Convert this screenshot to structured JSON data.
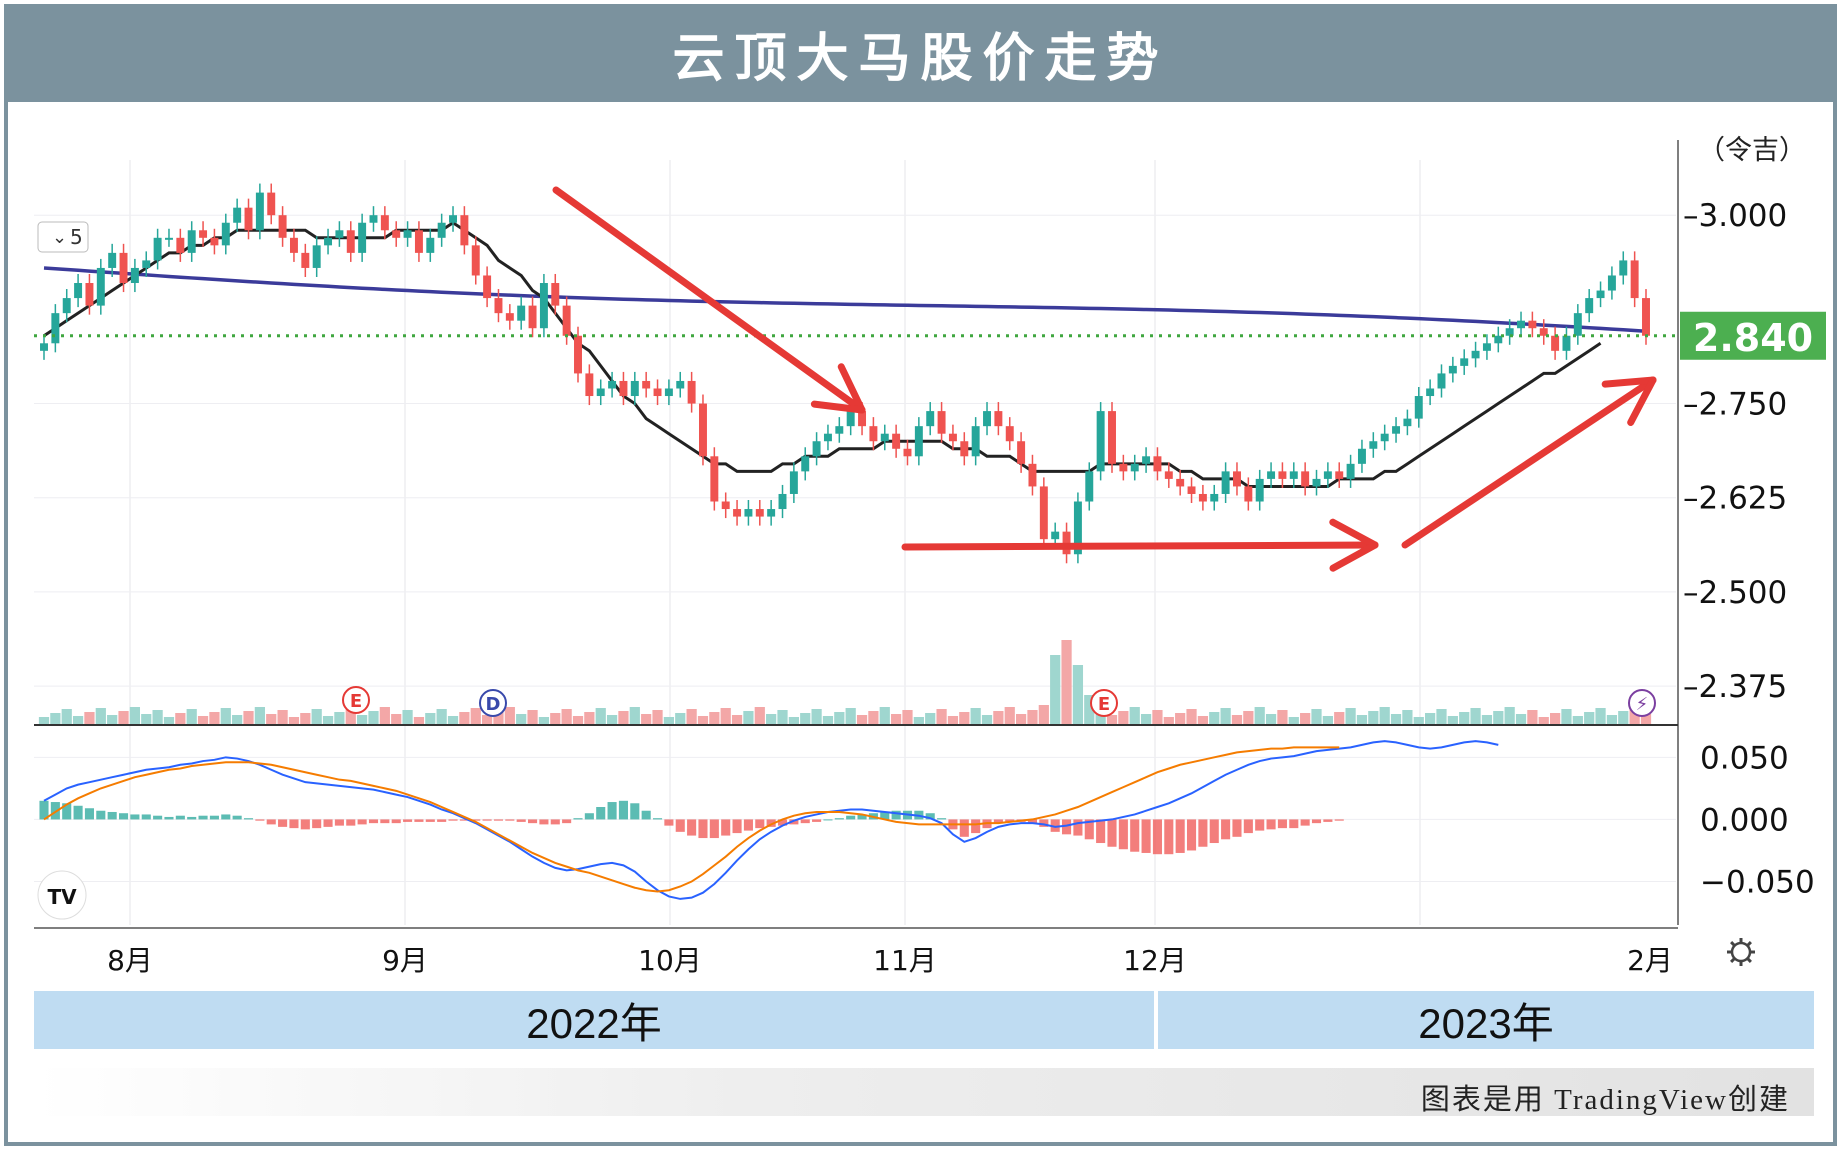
{
  "header": {
    "title": "云顶大马股价走势"
  },
  "footer": {
    "credit": "图表是用 TradingView创建"
  },
  "colors": {
    "up": "#26a69a",
    "down": "#ef5350",
    "ma_long": "#3b3b9a",
    "ma_short": "#222222",
    "price_line": "#3fa63f",
    "price_badge": "#4caf50",
    "arrow": "#e53935",
    "macd_line": "#2962ff",
    "signal_line": "#f57c00",
    "header_bg": "#7b929e",
    "year_band": "#bfdcf2"
  },
  "chart_data": [
    {
      "type": "candlestick",
      "unit_label": "（令吉）",
      "y_ticks": [
        "3.000",
        "2.750",
        "2.625",
        "2.500",
        "2.375"
      ],
      "ylim": [
        2.33,
        3.06
      ],
      "x_months": [
        "8月",
        "9月",
        "10月",
        "11月",
        "12月",
        "2月"
      ],
      "years": [
        "2022年",
        "2023年"
      ],
      "last_price": "2.840",
      "interval_label": "5",
      "closes": [
        2.83,
        2.87,
        2.89,
        2.91,
        2.88,
        2.93,
        2.95,
        2.91,
        2.93,
        2.94,
        2.97,
        2.97,
        2.95,
        2.98,
        2.97,
        2.96,
        2.99,
        3.01,
        2.98,
        3.03,
        3.0,
        2.97,
        2.95,
        2.93,
        2.96,
        2.97,
        2.98,
        2.95,
        2.99,
        3.0,
        2.98,
        2.97,
        2.98,
        2.95,
        2.97,
        2.99,
        3.0,
        2.96,
        2.92,
        2.89,
        2.87,
        2.86,
        2.88,
        2.85,
        2.91,
        2.88,
        2.84,
        2.79,
        2.76,
        2.77,
        2.78,
        2.76,
        2.78,
        2.77,
        2.76,
        2.77,
        2.78,
        2.75,
        2.68,
        2.62,
        2.61,
        2.6,
        2.61,
        2.6,
        2.61,
        2.63,
        2.66,
        2.68,
        2.7,
        2.71,
        2.72,
        2.74,
        2.72,
        2.7,
        2.71,
        2.69,
        2.68,
        2.72,
        2.74,
        2.71,
        2.7,
        2.68,
        2.72,
        2.74,
        2.72,
        2.7,
        2.67,
        2.64,
        2.57,
        2.58,
        2.55,
        2.62,
        2.66,
        2.74,
        2.67,
        2.66,
        2.67,
        2.68,
        2.66,
        2.65,
        2.64,
        2.63,
        2.62,
        2.63,
        2.66,
        2.64,
        2.62,
        2.65,
        2.66,
        2.65,
        2.66,
        2.64,
        2.65,
        2.66,
        2.65,
        2.67,
        2.69,
        2.7,
        2.71,
        2.72,
        2.73,
        2.76,
        2.77,
        2.79,
        2.8,
        2.81,
        2.82,
        2.83,
        2.84,
        2.85,
        2.86,
        2.85,
        2.84,
        2.82,
        2.84,
        2.87,
        2.89,
        2.9,
        2.92,
        2.94,
        2.89,
        2.84
      ],
      "ma_short": [
        2.84,
        2.85,
        2.86,
        2.87,
        2.88,
        2.89,
        2.9,
        2.91,
        2.92,
        2.93,
        2.94,
        2.95,
        2.95,
        2.96,
        2.96,
        2.97,
        2.97,
        2.98,
        2.98,
        2.98,
        2.98,
        2.98,
        2.98,
        2.98,
        2.97,
        2.97,
        2.97,
        2.97,
        2.97,
        2.97,
        2.97,
        2.98,
        2.98,
        2.98,
        2.98,
        2.98,
        2.99,
        2.98,
        2.97,
        2.96,
        2.94,
        2.93,
        2.92,
        2.9,
        2.89,
        2.87,
        2.85,
        2.83,
        2.82,
        2.8,
        2.78,
        2.76,
        2.75,
        2.73,
        2.72,
        2.71,
        2.7,
        2.69,
        2.68,
        2.67,
        2.67,
        2.66,
        2.66,
        2.66,
        2.66,
        2.67,
        2.67,
        2.68,
        2.68,
        2.68,
        2.69,
        2.69,
        2.69,
        2.69,
        2.7,
        2.7,
        2.7,
        2.7,
        2.7,
        2.7,
        2.69,
        2.69,
        2.69,
        2.68,
        2.68,
        2.68,
        2.67,
        2.66,
        2.66,
        2.66,
        2.66,
        2.66,
        2.66,
        2.67,
        2.67,
        2.67,
        2.67,
        2.67,
        2.67,
        2.67,
        2.66,
        2.66,
        2.65,
        2.65,
        2.65,
        2.65,
        2.64,
        2.64,
        2.64,
        2.64,
        2.64,
        2.64,
        2.64,
        2.64,
        2.65,
        2.65,
        2.65,
        2.65,
        2.66,
        2.66,
        2.67,
        2.68,
        2.69,
        2.7,
        2.71,
        2.72,
        2.73,
        2.74,
        2.75,
        2.76,
        2.77,
        2.78,
        2.79,
        2.79,
        2.8,
        2.81,
        2.82,
        2.83
      ]
    },
    {
      "type": "macd",
      "y_ticks": [
        "0.050",
        "0.000",
        "−0.050"
      ],
      "ylim": [
        -0.085,
        0.072
      ],
      "macd": [
        0.015,
        0.02,
        0.025,
        0.028,
        0.03,
        0.032,
        0.034,
        0.036,
        0.038,
        0.04,
        0.041,
        0.042,
        0.044,
        0.045,
        0.047,
        0.048,
        0.05,
        0.049,
        0.047,
        0.044,
        0.04,
        0.036,
        0.033,
        0.03,
        0.029,
        0.028,
        0.027,
        0.026,
        0.025,
        0.024,
        0.022,
        0.02,
        0.018,
        0.015,
        0.012,
        0.008,
        0.005,
        0.001,
        -0.003,
        -0.008,
        -0.013,
        -0.018,
        -0.024,
        -0.03,
        -0.035,
        -0.039,
        -0.041,
        -0.04,
        -0.038,
        -0.036,
        -0.035,
        -0.037,
        -0.042,
        -0.05,
        -0.057,
        -0.062,
        -0.064,
        -0.063,
        -0.059,
        -0.052,
        -0.043,
        -0.033,
        -0.024,
        -0.016,
        -0.01,
        -0.005,
        -0.001,
        0.002,
        0.004,
        0.006,
        0.007,
        0.008,
        0.008,
        0.007,
        0.006,
        0.005,
        0.004,
        0.003,
        0.001,
        -0.003,
        -0.012,
        -0.018,
        -0.015,
        -0.01,
        -0.006,
        -0.004,
        -0.003,
        -0.003,
        -0.004,
        -0.006,
        -0.005,
        -0.003,
        -0.002,
        -0.001,
        0.0,
        0.002,
        0.004,
        0.007,
        0.01,
        0.013,
        0.017,
        0.021,
        0.026,
        0.031,
        0.036,
        0.04,
        0.044,
        0.047,
        0.049,
        0.05,
        0.051,
        0.053,
        0.055,
        0.056,
        0.057,
        0.058,
        0.06,
        0.062,
        0.063,
        0.062,
        0.06,
        0.058,
        0.057,
        0.058,
        0.06,
        0.062,
        0.063,
        0.062,
        0.06
      ],
      "signal": [
        0.0,
        0.006,
        0.012,
        0.017,
        0.021,
        0.025,
        0.028,
        0.031,
        0.034,
        0.036,
        0.038,
        0.04,
        0.041,
        0.043,
        0.044,
        0.045,
        0.046,
        0.046,
        0.046,
        0.045,
        0.044,
        0.042,
        0.04,
        0.038,
        0.036,
        0.034,
        0.032,
        0.031,
        0.029,
        0.027,
        0.025,
        0.023,
        0.02,
        0.017,
        0.014,
        0.01,
        0.006,
        0.002,
        -0.002,
        -0.007,
        -0.012,
        -0.017,
        -0.022,
        -0.027,
        -0.031,
        -0.035,
        -0.038,
        -0.041,
        -0.043,
        -0.046,
        -0.049,
        -0.052,
        -0.055,
        -0.057,
        -0.058,
        -0.057,
        -0.054,
        -0.05,
        -0.044,
        -0.037,
        -0.03,
        -0.022,
        -0.015,
        -0.009,
        -0.004,
        0.0,
        0.003,
        0.005,
        0.006,
        0.006,
        0.006,
        0.005,
        0.004,
        0.002,
        0.0,
        -0.002,
        -0.003,
        -0.004,
        -0.004,
        -0.004,
        -0.004,
        -0.004,
        -0.004,
        -0.003,
        -0.003,
        -0.002,
        -0.001,
        0.0,
        0.002,
        0.004,
        0.007,
        0.01,
        0.014,
        0.018,
        0.022,
        0.026,
        0.03,
        0.034,
        0.038,
        0.041,
        0.044,
        0.046,
        0.048,
        0.05,
        0.052,
        0.054,
        0.055,
        0.056,
        0.057,
        0.057,
        0.058,
        0.058,
        0.058,
        0.058,
        0.058
      ]
    }
  ]
}
